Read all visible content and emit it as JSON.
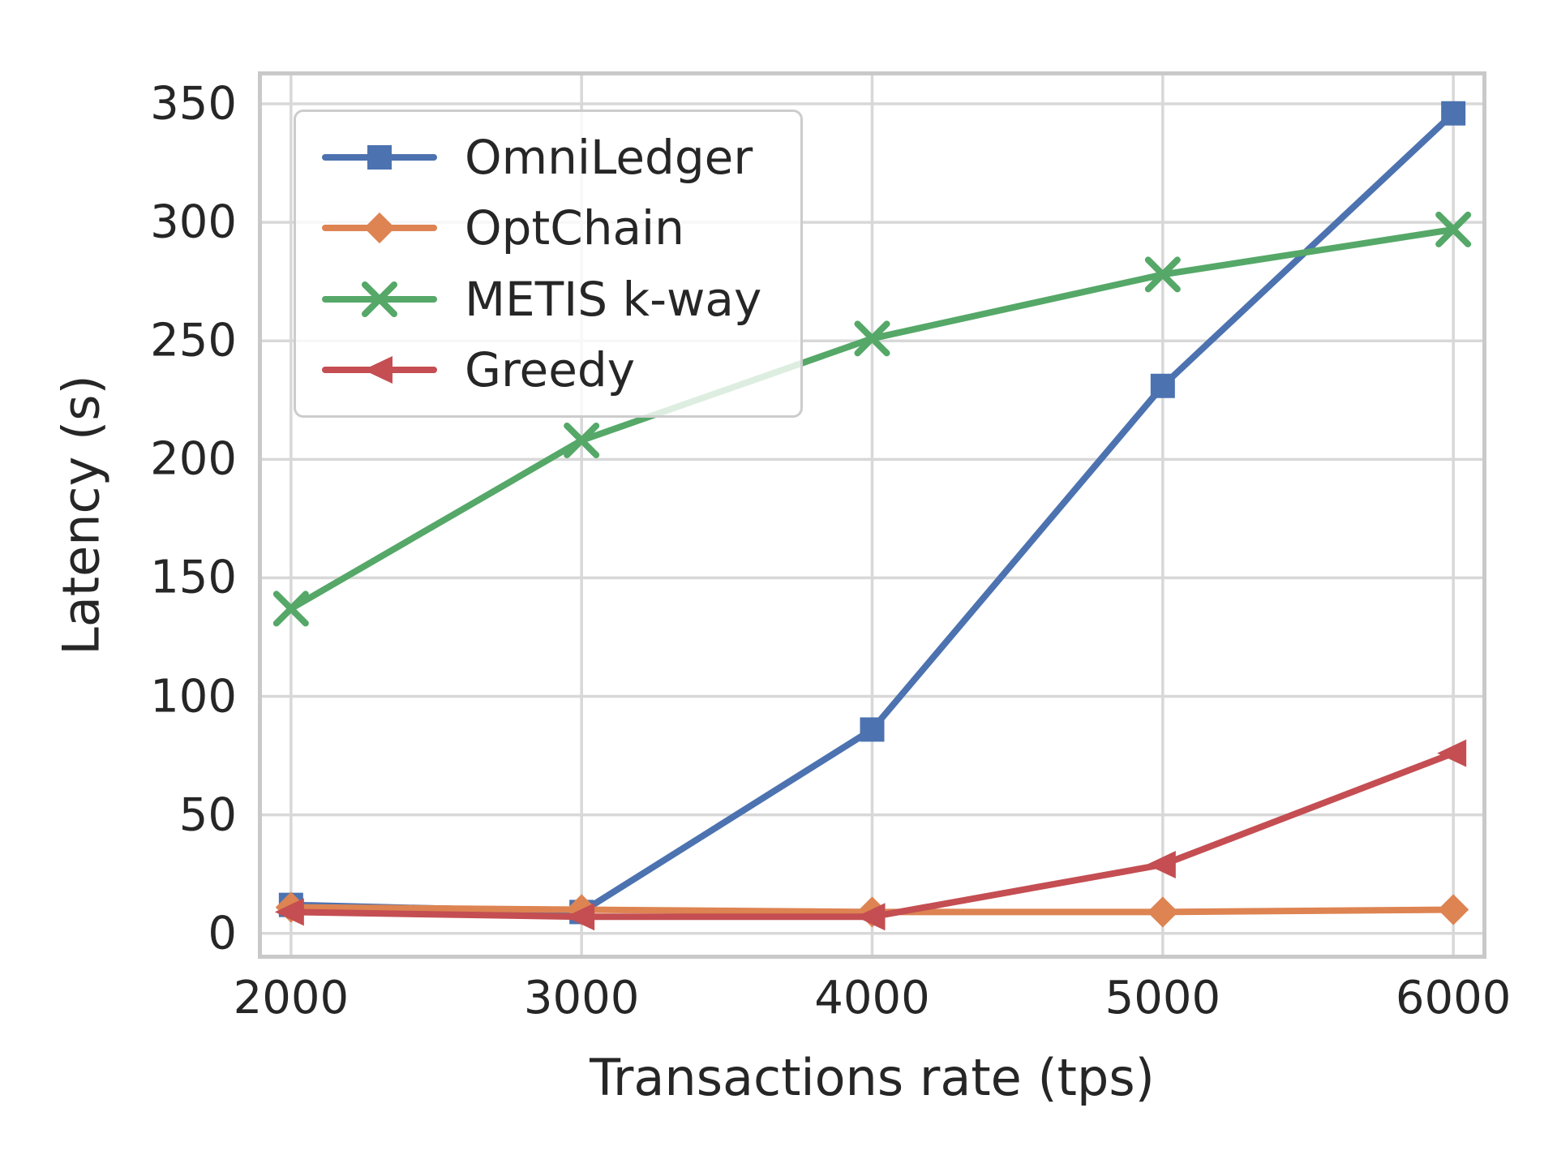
{
  "figure": {
    "y_axis": {
      "label": "Latency (s)",
      "tick_labels": [
        "0",
        "50",
        "100",
        "150",
        "200",
        "250",
        "300",
        "350"
      ]
    },
    "x_axis": {
      "label": "Transactions rate (tps)",
      "tick_labels": [
        "2000",
        "3000",
        "4000",
        "5000",
        "6000"
      ]
    },
    "legend": {
      "position": "upper-left",
      "items": [
        "OmniLedger",
        "OptChain",
        "METIS k-way",
        "Greedy"
      ]
    }
  },
  "colors": {
    "blue": "#4C72B0",
    "orange": "#DD8452",
    "green": "#55A868",
    "red": "#C44E52",
    "grid": "#D8D8D8",
    "spine": "#C9C9C9",
    "text": "#262626"
  },
  "chart_data": {
    "type": "line",
    "title": "",
    "xlabel": "Transactions rate (tps)",
    "ylabel": "Latency (s)",
    "x": [
      2000,
      3000,
      4000,
      5000,
      6000
    ],
    "xticks": [
      2000,
      3000,
      4000,
      5000,
      6000
    ],
    "yticks": [
      0,
      50,
      100,
      150,
      200,
      250,
      300,
      350
    ],
    "xlim": [
      1900,
      6100
    ],
    "ylim": [
      -9,
      362
    ],
    "grid": true,
    "legend_position": "upper left",
    "series": [
      {
        "name": "OmniLedger",
        "color": "#4C72B0",
        "marker": "square",
        "values": [
          12,
          9,
          86,
          231,
          346
        ]
      },
      {
        "name": "OptChain",
        "color": "#DD8452",
        "marker": "diamond",
        "values": [
          11,
          10,
          9,
          9,
          10
        ]
      },
      {
        "name": "METIS k-way",
        "color": "#55A868",
        "marker": "x",
        "values": [
          137,
          208,
          251,
          278,
          297
        ]
      },
      {
        "name": "Greedy",
        "color": "#C44E52",
        "marker": "triangle-left",
        "values": [
          9,
          7,
          7,
          29,
          76
        ]
      }
    ]
  }
}
